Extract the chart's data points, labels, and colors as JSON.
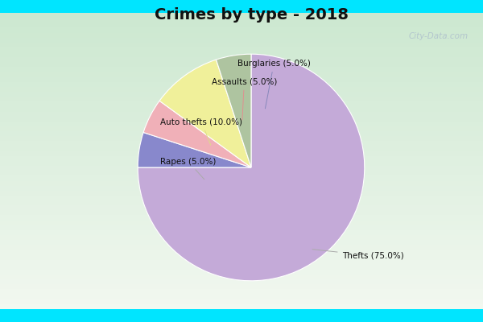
{
  "title": "Crimes by type - 2018",
  "labels": [
    "Thefts",
    "Burglaries",
    "Assaults",
    "Auto thefts",
    "Rapes"
  ],
  "values": [
    75.0,
    5.0,
    5.0,
    10.0,
    5.0
  ],
  "colors": [
    "#c4aad8",
    "#8888cc",
    "#f0b0b8",
    "#f0f09a",
    "#aec4a0"
  ],
  "label_texts": [
    "Thefts (75.0%)",
    "Burglaries (5.0%)",
    "Assaults (5.0%)",
    "Auto thefts (10.0%)",
    "Rapes (5.0%)"
  ],
  "title_fontsize": 14,
  "bg_outer": "#00e5ff",
  "watermark": "City-Data.com",
  "startangle": 90
}
